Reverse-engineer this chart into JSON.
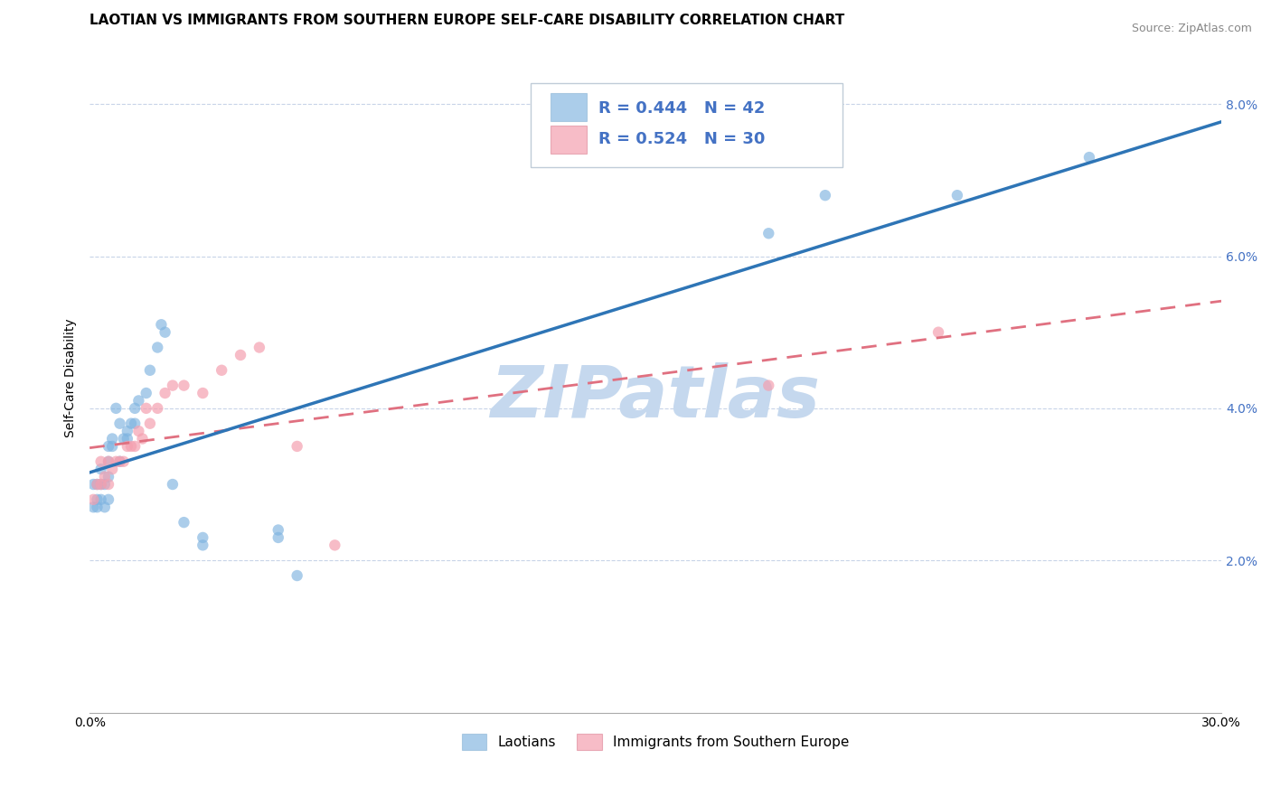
{
  "title": "LAOTIAN VS IMMIGRANTS FROM SOUTHERN EUROPE SELF-CARE DISABILITY CORRELATION CHART",
  "source": "Source: ZipAtlas.com",
  "ylabel": "Self-Care Disability",
  "xlim": [
    0.0,
    0.3
  ],
  "ylim": [
    0.0,
    0.088
  ],
  "legend_label_laotians": "Laotians",
  "legend_label_immigrants": "Immigrants from Southern Europe",
  "blue_color": "#7eb3e0",
  "pink_color": "#f4a0b0",
  "blue_line_color": "#2e75b6",
  "pink_line_color": "#e07080",
  "watermark": "ZIPatlas",
  "watermark_color": "#c5d8ee",
  "laotian_x": [
    0.001,
    0.001,
    0.002,
    0.002,
    0.002,
    0.003,
    0.003,
    0.003,
    0.004,
    0.004,
    0.005,
    0.005,
    0.005,
    0.005,
    0.006,
    0.006,
    0.007,
    0.008,
    0.008,
    0.009,
    0.01,
    0.01,
    0.011,
    0.012,
    0.012,
    0.013,
    0.015,
    0.016,
    0.018,
    0.019,
    0.02,
    0.022,
    0.025,
    0.03,
    0.03,
    0.05,
    0.05,
    0.055,
    0.18,
    0.195,
    0.23,
    0.265
  ],
  "laotian_y": [
    0.027,
    0.03,
    0.028,
    0.03,
    0.027,
    0.032,
    0.028,
    0.03,
    0.03,
    0.027,
    0.033,
    0.035,
    0.031,
    0.028,
    0.036,
    0.035,
    0.04,
    0.038,
    0.033,
    0.036,
    0.036,
    0.037,
    0.038,
    0.04,
    0.038,
    0.041,
    0.042,
    0.045,
    0.048,
    0.051,
    0.05,
    0.03,
    0.025,
    0.023,
    0.022,
    0.023,
    0.024,
    0.018,
    0.063,
    0.068,
    0.068,
    0.073
  ],
  "immigrant_x": [
    0.001,
    0.002,
    0.003,
    0.003,
    0.004,
    0.005,
    0.005,
    0.006,
    0.007,
    0.008,
    0.009,
    0.01,
    0.011,
    0.012,
    0.013,
    0.014,
    0.015,
    0.016,
    0.018,
    0.02,
    0.022,
    0.025,
    0.03,
    0.035,
    0.04,
    0.045,
    0.055,
    0.065,
    0.18,
    0.225
  ],
  "immigrant_y": [
    0.028,
    0.03,
    0.03,
    0.033,
    0.031,
    0.03,
    0.033,
    0.032,
    0.033,
    0.033,
    0.033,
    0.035,
    0.035,
    0.035,
    0.037,
    0.036,
    0.04,
    0.038,
    0.04,
    0.042,
    0.043,
    0.043,
    0.042,
    0.045,
    0.047,
    0.048,
    0.035,
    0.022,
    0.043,
    0.05
  ],
  "background_color": "#ffffff",
  "grid_color": "#c8d4e8",
  "title_fontsize": 11,
  "axis_label_fontsize": 10,
  "tick_fontsize": 10
}
